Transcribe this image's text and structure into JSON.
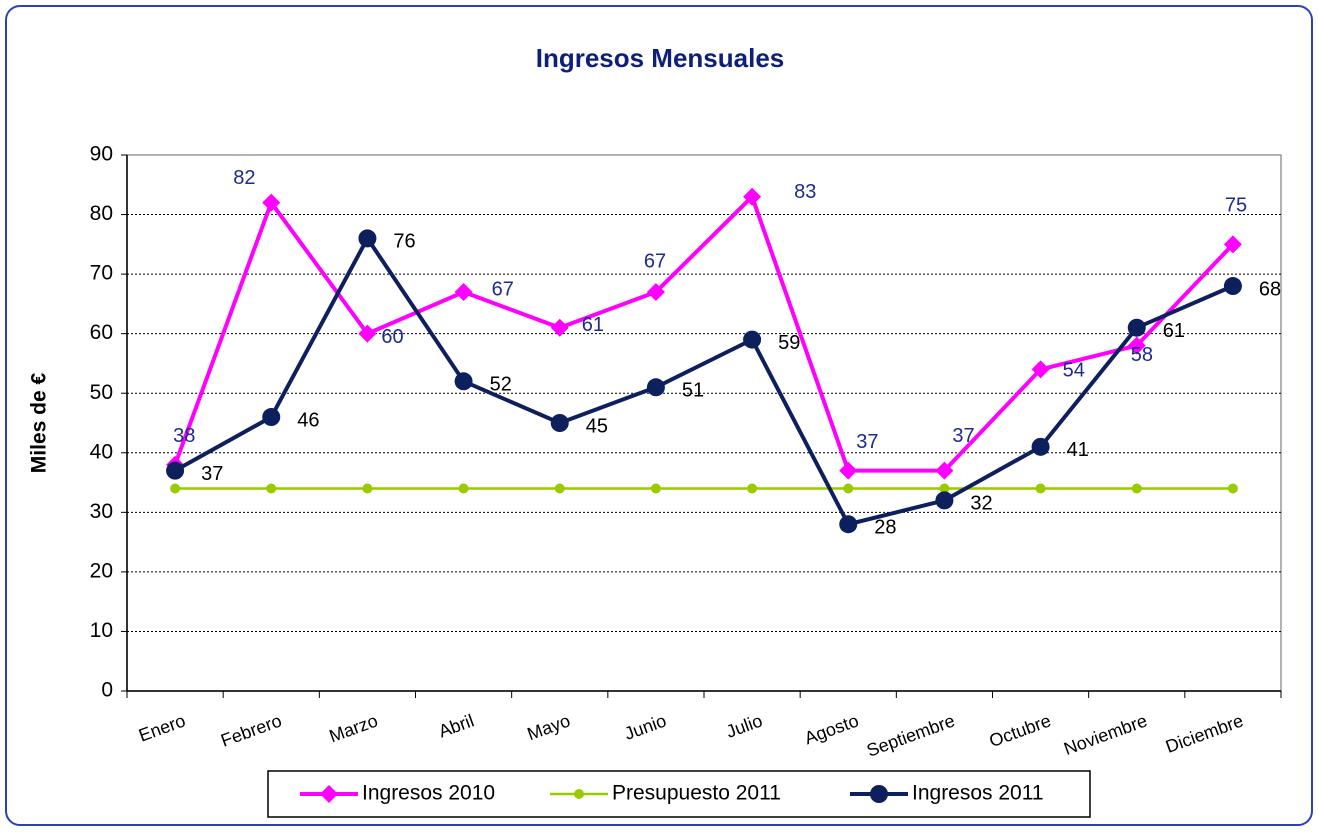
{
  "chart_data": {
    "type": "line",
    "title": "Ingresos Mensuales",
    "y_label": "Miles de €",
    "categories": [
      "Enero",
      "Febrero",
      "Marzo",
      "Abril",
      "Mayo",
      "Junio",
      "Julio",
      "Agosto",
      "Septiembre",
      "Octubre",
      "Noviembre",
      "Diciembre"
    ],
    "series": [
      {
        "name": "Ingresos 2010",
        "color": "#ff00ff",
        "marker": "diamond",
        "labels": true,
        "values": [
          38,
          82,
          60,
          67,
          61,
          67,
          83,
          37,
          37,
          54,
          58,
          75
        ]
      },
      {
        "name": "Presupuesto 2011",
        "color": "#99cc00",
        "marker": "small-circle",
        "labels": false,
        "values": [
          34,
          34,
          34,
          34,
          34,
          34,
          34,
          34,
          34,
          34,
          34,
          34
        ]
      },
      {
        "name": "Ingresos 2011",
        "color": "#0d1f5c",
        "marker": "circle",
        "labels": true,
        "values": [
          37,
          46,
          76,
          52,
          45,
          51,
          59,
          28,
          32,
          41,
          61,
          68
        ]
      }
    ],
    "ylim": [
      0,
      90
    ],
    "yticks": [
      0,
      10,
      20,
      30,
      40,
      50,
      60,
      70,
      80,
      90
    ],
    "grid": true,
    "legend": "bottom"
  }
}
